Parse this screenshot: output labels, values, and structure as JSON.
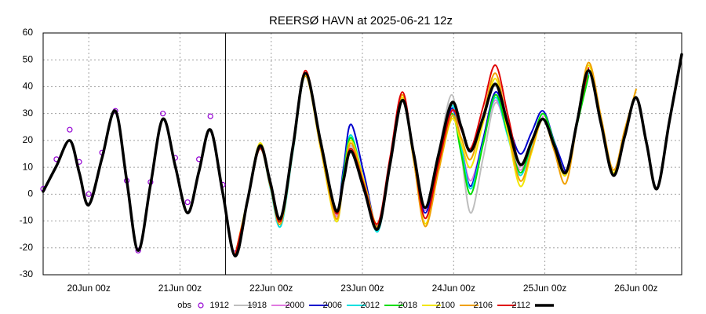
{
  "chart_data": {
    "type": "line",
    "title": "REERSØ HAVN at 2025-06-21 12z",
    "x": [
      12,
      15.5,
      19,
      21.5,
      24,
      27.5,
      31,
      34,
      37,
      40.25,
      43.5,
      46.75,
      50,
      53,
      56,
      59.25,
      62.5,
      65.75,
      69,
      71.75,
      74.5,
      77.75,
      81,
      85,
      89,
      91,
      93,
      96.5,
      100,
      103.25,
      106.5,
      109.5,
      112.5,
      116,
      119.5,
      122,
      124.5,
      127.75,
      131,
      134.25,
      137.5,
      140.5,
      143.5,
      146.5,
      149.5,
      152.5,
      155.5,
      158.75,
      162,
      165,
      168,
      170.75,
      173.5,
      176.75,
      180
    ],
    "xlim": [
      12,
      180
    ],
    "xticks": [
      {
        "value": 24,
        "label": "20Jun 00z"
      },
      {
        "value": 48,
        "label": "21Jun 00z"
      },
      {
        "value": 72,
        "label": "22Jun 00z"
      },
      {
        "value": 96,
        "label": "23Jun 00z"
      },
      {
        "value": 120,
        "label": "24Jun 00z"
      },
      {
        "value": 144,
        "label": "25Jun 00z"
      },
      {
        "value": 168,
        "label": "26Jun 00z"
      }
    ],
    "ylim": [
      -30,
      60
    ],
    "yticks": [
      -30,
      -20,
      -10,
      0,
      10,
      20,
      30,
      40,
      50,
      60
    ],
    "grid": true,
    "legend": "bottom",
    "vline": 60,
    "series": [
      {
        "name": "obs",
        "color": "#9400d3",
        "marker": "circle",
        "values": [
          2,
          13,
          24,
          12,
          0,
          15.5,
          31,
          5,
          -21,
          4.5,
          30,
          13.5,
          -3,
          13,
          29,
          3.5,
          -22,
          null,
          null,
          null,
          null,
          null,
          null,
          null,
          null,
          null,
          null,
          null,
          null,
          null,
          null,
          null,
          null,
          null,
          null,
          null,
          null,
          null,
          null,
          null,
          null,
          null,
          null,
          null,
          null,
          null,
          null,
          null,
          null,
          null,
          null,
          null,
          null,
          null,
          null
        ]
      },
      {
        "name": "1912",
        "color": "#bebebe",
        "line_width": 2,
        "values": [
          null,
          null,
          null,
          null,
          null,
          null,
          null,
          null,
          null,
          null,
          null,
          null,
          null,
          null,
          null,
          null,
          -23,
          -3,
          17,
          3.5,
          -10,
          17,
          44,
          17,
          -10,
          4,
          18,
          3,
          -12,
          11.5,
          35,
          14.5,
          -6,
          15.5,
          37,
          15,
          -7,
          13.5,
          34,
          22,
          10,
          null,
          null,
          null,
          null,
          null,
          null,
          null,
          null,
          null,
          null,
          null,
          null,
          null,
          null
        ]
      },
      {
        "name": "1918",
        "color": "#e07ae0",
        "line_width": 2,
        "values": [
          null,
          null,
          null,
          null,
          null,
          null,
          null,
          null,
          null,
          null,
          null,
          null,
          null,
          null,
          null,
          null,
          -23,
          -3,
          17,
          3.5,
          -10,
          17.5,
          45,
          18.5,
          -8,
          5.5,
          19,
          3.5,
          -12,
          11.5,
          35,
          14.5,
          -6,
          12.5,
          31,
          18,
          5,
          20,
          35,
          22,
          9,
          19,
          29,
          null,
          null,
          null,
          null,
          null,
          null,
          null,
          null,
          null,
          null,
          null,
          null
        ]
      },
      {
        "name": "2000",
        "color": "#0000cd",
        "line_width": 2,
        "values": [
          null,
          null,
          null,
          null,
          null,
          null,
          null,
          null,
          null,
          null,
          null,
          null,
          null,
          null,
          null,
          null,
          -23,
          -3,
          17,
          3.5,
          -10,
          17,
          44,
          18.5,
          -7,
          9.5,
          26,
          7,
          -12,
          11.5,
          35,
          14,
          -7,
          12.5,
          32,
          17.5,
          3,
          20.5,
          38,
          26.5,
          15,
          23,
          31,
          19.5,
          8,
          null,
          null,
          null,
          null,
          null,
          null,
          null,
          null,
          null,
          null
        ]
      },
      {
        "name": "2006",
        "color": "#00e0e0",
        "line_width": 2,
        "values": [
          null,
          null,
          null,
          null,
          null,
          null,
          null,
          null,
          null,
          null,
          null,
          null,
          null,
          null,
          null,
          null,
          -23,
          -3,
          17,
          2.5,
          -12,
          16,
          44,
          18.5,
          -7,
          7.5,
          22,
          4,
          -14,
          10.5,
          35,
          15,
          -5,
          14,
          33,
          17.5,
          2,
          19,
          36,
          21.5,
          7,
          18.5,
          30,
          19,
          8,
          26.5,
          45,
          null,
          null,
          null,
          null,
          null,
          null,
          null,
          null
        ]
      },
      {
        "name": "2012",
        "color": "#00dd00",
        "line_width": 2,
        "values": [
          null,
          null,
          null,
          null,
          null,
          null,
          null,
          null,
          null,
          null,
          null,
          null,
          null,
          null,
          null,
          null,
          -23,
          -3,
          17,
          3.5,
          -10,
          17,
          44,
          18.5,
          -7,
          7,
          21,
          4,
          -13,
          11,
          35,
          15,
          -5,
          12.5,
          30,
          15,
          0,
          18.5,
          37,
          22.5,
          8,
          19,
          30,
          19,
          8,
          26,
          44,
          null,
          null,
          null,
          null,
          null,
          null,
          null,
          null
        ]
      },
      {
        "name": "2018",
        "color": "#f2e600",
        "line_width": 2,
        "values": [
          null,
          null,
          null,
          null,
          null,
          null,
          null,
          null,
          null,
          null,
          null,
          null,
          null,
          null,
          null,
          null,
          -23,
          -2,
          19,
          4.5,
          -10,
          17,
          44,
          17,
          -10,
          5,
          20,
          4.5,
          -11,
          12.5,
          36,
          12.5,
          -11,
          8.5,
          28,
          19,
          10,
          26.5,
          43,
          23,
          3,
          15.5,
          28,
          17.5,
          7,
          27.5,
          48,
          28,
          8,
          23.5,
          39,
          null,
          null,
          null,
          null
        ]
      },
      {
        "name": "2100",
        "color": "#f0a000",
        "line_width": 2,
        "values": [
          null,
          null,
          null,
          null,
          null,
          null,
          null,
          null,
          null,
          null,
          null,
          null,
          null,
          null,
          null,
          null,
          -23,
          -3,
          17,
          3,
          -11,
          16.5,
          44,
          17.5,
          -9,
          5,
          19,
          3.5,
          -12,
          12.5,
          37,
          12.5,
          -12,
          8.5,
          29,
          21,
          13,
          29,
          45,
          25,
          5,
          16.5,
          28,
          16,
          4,
          26.5,
          49,
          29,
          9,
          24,
          39,
          null,
          null,
          null,
          null
        ]
      },
      {
        "name": "2106",
        "color": "#e00000",
        "line_width": 2,
        "values": [
          null,
          null,
          null,
          null,
          null,
          null,
          null,
          null,
          null,
          null,
          null,
          null,
          null,
          null,
          null,
          null,
          -23,
          -3,
          17,
          3.5,
          -10,
          18,
          46,
          19.5,
          -7,
          5,
          17,
          3,
          -11,
          13.5,
          38,
          14.5,
          -9,
          11,
          31,
          24,
          17,
          32.5,
          48,
          29.5,
          11,
          19.5,
          28,
          18,
          8,
          27.5,
          47,
          null,
          null,
          null,
          null,
          null,
          null,
          null,
          null
        ]
      },
      {
        "name": "2112",
        "color": "#000000",
        "line_width": 3.5,
        "values": [
          1,
          10.5,
          20,
          8,
          -4,
          13.5,
          31,
          5,
          -21,
          3.5,
          28,
          10.5,
          -7,
          8.5,
          24,
          0.5,
          -23,
          -2.5,
          18,
          4.5,
          -9,
          18,
          45,
          19.5,
          -6,
          5,
          16,
          1.5,
          -13,
          11,
          35,
          15,
          -5,
          14.5,
          34,
          25,
          16,
          28.5,
          41,
          26,
          11,
          19.5,
          28,
          18,
          8,
          27,
          46,
          26.5,
          7,
          21.5,
          36,
          19,
          2,
          27,
          52
        ]
      }
    ]
  }
}
